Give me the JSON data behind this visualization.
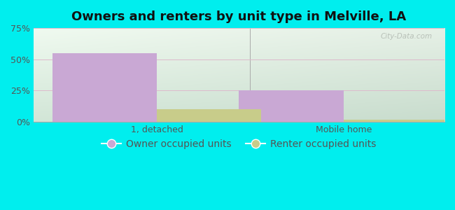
{
  "title": "Owners and renters by unit type in Melville, LA",
  "categories": [
    "1, detached",
    "Mobile home"
  ],
  "owner_values": [
    55,
    25
  ],
  "renter_values": [
    10,
    2
  ],
  "owner_color": "#c9a8d4",
  "renter_color": "#c8cc8a",
  "bar_width": 0.28,
  "ylim": [
    0,
    75
  ],
  "yticks": [
    0,
    25,
    50,
    75
  ],
  "yticklabels": [
    "0%",
    "25%",
    "50%",
    "75%"
  ],
  "fig_background_color": "#00eeee",
  "plot_bg_color_topleft": "#d8eed8",
  "plot_bg_color_topright": "#f0f8f0",
  "plot_bg_color_bottom": "#c8e8d0",
  "grid_color": "#ddbbcc",
  "title_fontsize": 13,
  "tick_fontsize": 9,
  "legend_fontsize": 10,
  "legend_label_owner": "Owner occupied units",
  "legend_label_renter": "Renter occupied units",
  "watermark": "City-Data.com",
  "tick_color": "#555555",
  "group_centers": [
    0.28,
    0.78
  ],
  "xlim": [
    -0.05,
    1.05
  ]
}
